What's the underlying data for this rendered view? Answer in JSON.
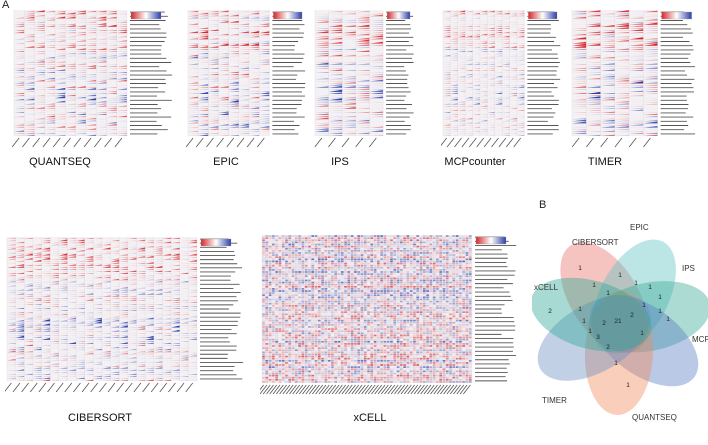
{
  "panels": {
    "A": {
      "letter": "A",
      "heatmaps": [
        {
          "id": "quantseq",
          "title": "QUANTSEQ",
          "columns": 11,
          "rows": 60,
          "density": 0.55,
          "stripes": true
        },
        {
          "id": "epic",
          "title": "EPIC",
          "columns": 8,
          "rows": 60,
          "density": 0.6,
          "stripes": true
        },
        {
          "id": "ips",
          "title": "IPS",
          "columns": 5,
          "rows": 60,
          "density": 0.6,
          "stripes": true
        },
        {
          "id": "mcpcounter",
          "title": "MCPcounter",
          "columns": 11,
          "rows": 60,
          "density": 0.35,
          "stripes": true
        },
        {
          "id": "timer",
          "title": "TIMER",
          "columns": 6,
          "rows": 60,
          "density": 0.65,
          "stripes": true
        },
        {
          "id": "cibersort",
          "title": "CIBERSORT",
          "columns": 22,
          "rows": 70,
          "density": 0.5,
          "stripes": true
        },
        {
          "id": "xcell",
          "title": "xCELL",
          "columns": 64,
          "rows": 70,
          "density": 0.5,
          "stripes": false
        }
      ]
    },
    "B": {
      "letter": "B",
      "sets": [
        {
          "name": "CIBERSORT",
          "color": "#e8736c"
        },
        {
          "name": "EPIC",
          "color": "#5fc2c0"
        },
        {
          "name": "IPS",
          "color": "#3aaa96"
        },
        {
          "name": "MCPcounter",
          "color": "#5b7fc4"
        },
        {
          "name": "QUANTSEQ",
          "color": "#f08a5d"
        },
        {
          "name": "TIMER",
          "color": "#6b8fc0"
        },
        {
          "name": "xCELL",
          "color": "#2ea897"
        }
      ],
      "counts": [
        "1",
        "1",
        "1",
        "1",
        "1",
        "1",
        "1",
        "1",
        "21",
        "2",
        "1",
        "1",
        "1",
        "1",
        "1",
        "2",
        "2",
        "1",
        "3",
        "2",
        "1",
        "1"
      ]
    }
  },
  "colors": {
    "pos": "#d6262b",
    "neg": "#2c3fa8",
    "neutral": "#f4f1f4",
    "label": "#555555"
  }
}
